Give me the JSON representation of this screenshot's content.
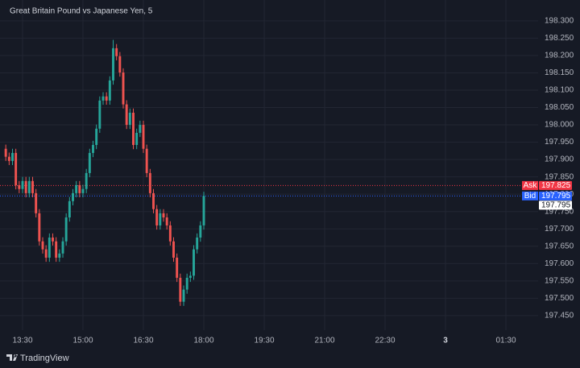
{
  "chart_data": {
    "type": "candlestick",
    "title": "Great Britain Pound vs Japanese Yen, 5",
    "x": [
      -5,
      -4,
      -3,
      -2,
      -1,
      0,
      1,
      2,
      3,
      4,
      5,
      6,
      7,
      8,
      9,
      10,
      11,
      12,
      13,
      14,
      15,
      16,
      17,
      18,
      19,
      20,
      21,
      22,
      23,
      24,
      25,
      26,
      27,
      28,
      29,
      30,
      31,
      32,
      33,
      34,
      35,
      36,
      37,
      38,
      39,
      40,
      41,
      42,
      43,
      44,
      45,
      46,
      47,
      48,
      49,
      50,
      51,
      52,
      53,
      54
    ],
    "open": [
      197.931,
      197.908,
      197.896,
      197.919,
      197.826,
      197.815,
      197.838,
      197.803,
      197.838,
      197.803,
      197.745,
      197.664,
      197.641,
      197.617,
      197.675,
      197.664,
      197.617,
      197.629,
      197.664,
      197.733,
      197.78,
      197.803,
      197.826,
      197.803,
      197.815,
      197.861,
      197.919,
      197.942,
      197.989,
      198.07,
      198.082,
      198.07,
      198.128,
      198.221,
      198.198,
      198.151,
      198.059,
      198.0,
      198.035,
      197.942,
      197.977,
      198.0,
      197.931,
      197.861,
      197.803,
      197.757,
      197.71,
      197.745,
      197.733,
      197.71,
      197.664,
      197.617,
      197.559,
      197.49,
      197.525,
      197.559,
      197.565,
      197.641,
      197.675,
      197.71
    ],
    "high": [
      197.943,
      197.92,
      197.931,
      197.931,
      197.838,
      197.85,
      197.85,
      197.85,
      197.85,
      197.815,
      197.757,
      197.676,
      197.653,
      197.687,
      197.687,
      197.676,
      197.641,
      197.676,
      197.745,
      197.792,
      197.815,
      197.838,
      197.838,
      197.827,
      197.873,
      197.931,
      197.954,
      198.001,
      198.082,
      198.094,
      198.094,
      198.14,
      198.245,
      198.233,
      198.21,
      198.163,
      198.071,
      198.047,
      198.047,
      197.989,
      198.012,
      198.012,
      197.943,
      197.873,
      197.815,
      197.769,
      197.757,
      197.757,
      197.745,
      197.722,
      197.676,
      197.629,
      197.571,
      197.537,
      197.571,
      197.577,
      197.653,
      197.687,
      197.722,
      197.807
    ],
    "low": [
      197.896,
      197.884,
      197.884,
      197.814,
      197.803,
      197.803,
      197.791,
      197.791,
      197.791,
      197.733,
      197.652,
      197.629,
      197.605,
      197.605,
      197.652,
      197.605,
      197.605,
      197.617,
      197.652,
      197.721,
      197.768,
      197.791,
      197.791,
      197.791,
      197.803,
      197.849,
      197.907,
      197.93,
      197.977,
      198.058,
      198.058,
      198.058,
      198.116,
      198.186,
      198.139,
      198.047,
      197.988,
      197.988,
      197.93,
      197.93,
      197.965,
      197.919,
      197.849,
      197.791,
      197.745,
      197.698,
      197.698,
      197.721,
      197.698,
      197.652,
      197.605,
      197.547,
      197.478,
      197.478,
      197.513,
      197.547,
      197.553,
      197.629,
      197.663,
      197.698
    ],
    "close": [
      197.908,
      197.896,
      197.919,
      197.826,
      197.815,
      197.838,
      197.803,
      197.838,
      197.803,
      197.745,
      197.664,
      197.641,
      197.617,
      197.675,
      197.664,
      197.617,
      197.629,
      197.664,
      197.733,
      197.78,
      197.803,
      197.826,
      197.803,
      197.815,
      197.861,
      197.919,
      197.942,
      197.989,
      198.07,
      198.082,
      198.07,
      198.128,
      198.221,
      198.198,
      198.151,
      198.059,
      198.0,
      198.035,
      197.942,
      197.977,
      198.0,
      197.931,
      197.861,
      197.803,
      197.757,
      197.71,
      197.745,
      197.733,
      197.71,
      197.664,
      197.617,
      197.559,
      197.49,
      197.525,
      197.559,
      197.565,
      197.641,
      197.675,
      197.71,
      197.795
    ],
    "up_color": "#26a69a",
    "down_color": "#ef5350",
    "xlim": [
      -6.72,
      153.6
    ],
    "xticks": [
      {
        "value": 0,
        "label": "13:30"
      },
      {
        "value": 18,
        "label": "15:00"
      },
      {
        "value": 36,
        "label": "16:30"
      },
      {
        "value": 54,
        "label": "18:00"
      },
      {
        "value": 72,
        "label": "19:30"
      },
      {
        "value": 90,
        "label": "21:00"
      },
      {
        "value": 108,
        "label": "22:30"
      },
      {
        "value": 126,
        "label": "3"
      },
      {
        "value": 144,
        "label": "01:30"
      }
    ],
    "ylim": [
      197.408,
      198.36
    ],
    "yticks": [
      {
        "value": 198.3,
        "label": "198.300"
      },
      {
        "value": 198.25,
        "label": "198.250"
      },
      {
        "value": 198.2,
        "label": "198.200"
      },
      {
        "value": 198.15,
        "label": "198.150"
      },
      {
        "value": 198.1,
        "label": "198.100"
      },
      {
        "value": 198.05,
        "label": "198.050"
      },
      {
        "value": 198.0,
        "label": "198.000"
      },
      {
        "value": 197.95,
        "label": "197.950"
      },
      {
        "value": 197.9,
        "label": "197.900"
      },
      {
        "value": 197.85,
        "label": "197.850"
      },
      {
        "value": 197.8,
        "label": "197.800"
      },
      {
        "value": 197.75,
        "label": "197.750"
      },
      {
        "value": 197.7,
        "label": "197.700"
      },
      {
        "value": 197.65,
        "label": "197.650"
      },
      {
        "value": 197.6,
        "label": "197.600"
      },
      {
        "value": 197.55,
        "label": "197.550"
      },
      {
        "value": 197.5,
        "label": "197.500"
      },
      {
        "value": 197.45,
        "label": "197.450"
      }
    ],
    "grid": true,
    "ask_label": "Ask",
    "ask": 197.825,
    "ask_color": "#f23645",
    "bid_label": "Bid",
    "bid": 197.795,
    "bid_color": "#2962ff",
    "brand": "TradingView"
  }
}
